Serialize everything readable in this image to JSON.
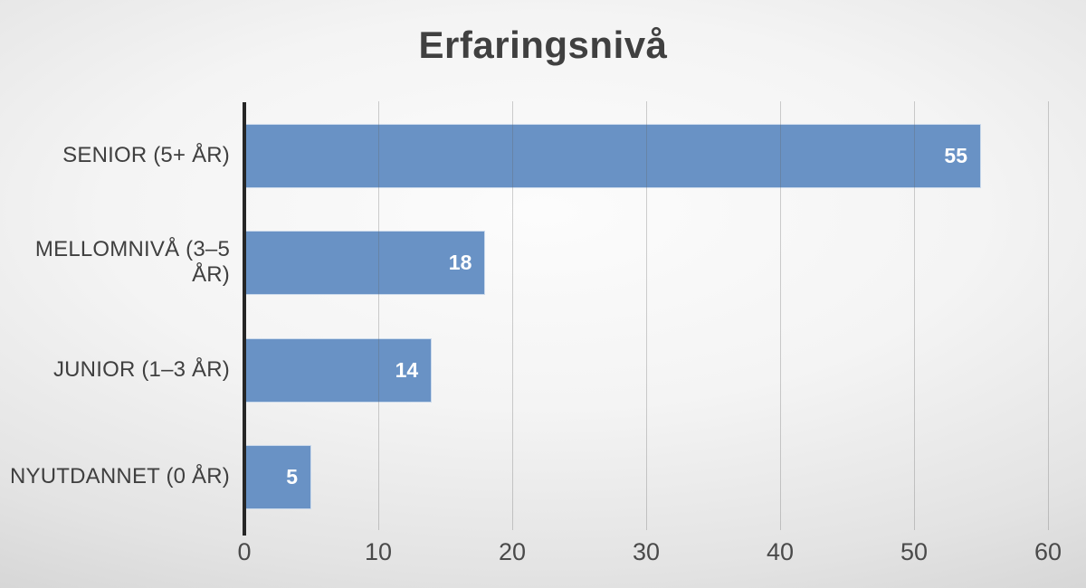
{
  "chart_data": {
    "type": "bar",
    "orientation": "horizontal",
    "title": "Erfaringsnivå",
    "categories": [
      "SENIOR (5+ ÅR)",
      "MELLOMNIVÅ (3–5 ÅR)",
      "JUNIOR (1–3 ÅR)",
      "NYUTDANNET (0 ÅR)"
    ],
    "values": [
      55,
      18,
      14,
      5
    ],
    "xlabel": "",
    "ylabel": "",
    "xlim": [
      0,
      60
    ],
    "xticks": [
      0,
      10,
      20,
      30,
      40,
      50,
      60
    ],
    "grid": true,
    "legend": false,
    "colors": {
      "bar_fill": "#6992C5",
      "bar_border": "rgba(255,255,255,0.65)",
      "value_label": "#FFFFFF",
      "title": "#404040",
      "category_label": "#3F3F3F",
      "tick_label": "#4A4A4A",
      "gridline": "rgba(100,100,100,0.30)",
      "axis_line": "#262626"
    }
  }
}
